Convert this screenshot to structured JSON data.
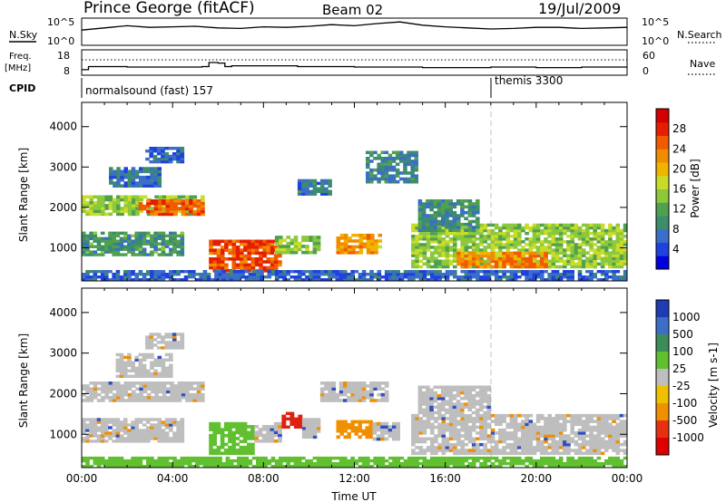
{
  "header": {
    "station": "Prince George (fitACF)",
    "beam": "Beam 02",
    "date": "19/Jul/2009"
  },
  "chart_data": [
    {
      "type": "line",
      "panel": "noise",
      "left_label": "N.Sky",
      "right_label": "N.Search",
      "left_ticks": [
        "10^5",
        "10^0"
      ],
      "right_ticks": [
        "10^5",
        "10^0"
      ],
      "x": [
        0,
        1,
        2,
        3,
        4,
        5,
        6,
        7,
        8,
        9,
        10,
        11,
        12,
        13,
        14,
        15,
        16,
        17,
        18,
        19,
        20,
        21,
        22,
        23,
        24
      ],
      "series": [
        {
          "values": [
            2.8,
            3.2,
            3.6,
            3.3,
            3.4,
            3.5,
            3.2,
            3.1,
            3.4,
            3.3,
            3.5,
            3.8,
            3.6,
            4.0,
            4.3,
            3.7,
            3.4,
            3.2,
            3.0,
            3.1,
            3.3,
            3.3,
            3.1,
            3.2,
            3.3
          ]
        }
      ]
    },
    {
      "type": "line",
      "panel": "frequency",
      "left_label": "Freq.",
      "left_unit": "[MHz]",
      "right_label": "Nave",
      "left_ticks": [
        "18",
        "8"
      ],
      "right_ticks": [
        "60",
        "0"
      ],
      "x": [
        0,
        0.3,
        2,
        5.3,
        5.6,
        6.0,
        6.3,
        6.6,
        8.5,
        9.5,
        12,
        15,
        17,
        18,
        20,
        22,
        24
      ],
      "series": [
        {
          "values": [
            10.2,
            11.4,
            11.2,
            11.4,
            13.0,
            12.8,
            11.4,
            11.7,
            11.7,
            11.4,
            11.2,
            11.0,
            11.0,
            11.2,
            11.0,
            11.2,
            11.0
          ]
        }
      ]
    },
    {
      "type": "heatmap",
      "panel": "power",
      "ylabel": "Slant Range [km]",
      "ylim": [
        180,
        4600
      ],
      "y_ticks": [
        1000,
        2000,
        3000,
        4000
      ],
      "colorbar": {
        "label": "Power [dB]",
        "ticks": [
          4,
          8,
          12,
          16,
          20,
          24,
          28
        ],
        "range": [
          0,
          32
        ]
      },
      "regions": [
        {
          "t0": 0.0,
          "t1": 5.4,
          "r0": 1800,
          "r1": 2300,
          "value": 15
        },
        {
          "t0": 2.5,
          "t1": 5.4,
          "r0": 1800,
          "r1": 2200,
          "value": 26
        },
        {
          "t0": 0.0,
          "t1": 4.5,
          "r0": 800,
          "r1": 1400,
          "value": 10
        },
        {
          "t0": 1.2,
          "t1": 3.5,
          "r0": 2500,
          "r1": 3000,
          "value": 6
        },
        {
          "t0": 2.8,
          "t1": 4.5,
          "r0": 3100,
          "r1": 3500,
          "value": 5
        },
        {
          "t0": 5.6,
          "t1": 8.8,
          "r0": 400,
          "r1": 1200,
          "value": 27
        },
        {
          "t0": 8.5,
          "t1": 10.5,
          "r0": 850,
          "r1": 1300,
          "value": 14
        },
        {
          "t0": 11.2,
          "t1": 13.2,
          "r0": 850,
          "r1": 1350,
          "value": 22
        },
        {
          "t0": 12.5,
          "t1": 14.8,
          "r0": 2600,
          "r1": 3400,
          "value": 8
        },
        {
          "t0": 9.5,
          "t1": 11.0,
          "r0": 2300,
          "r1": 2700,
          "value": 7
        },
        {
          "t0": 14.5,
          "t1": 24.0,
          "r0": 500,
          "r1": 1600,
          "value": 15
        },
        {
          "t0": 16.5,
          "t1": 20.5,
          "r0": 500,
          "r1": 900,
          "value": 24
        },
        {
          "t0": 14.8,
          "t1": 17.5,
          "r0": 1400,
          "r1": 2200,
          "value": 9
        },
        {
          "t0": 0.0,
          "t1": 24.0,
          "r0": 180,
          "r1": 450,
          "value": 5
        }
      ]
    },
    {
      "type": "heatmap",
      "panel": "velocity",
      "xlabel": "Time UT",
      "ylabel": "Slant Range [km]",
      "ylim": [
        180,
        4600
      ],
      "y_ticks": [
        1000,
        2000,
        3000,
        4000
      ],
      "x_ticks": [
        "00:00",
        "04:00",
        "08:00",
        "12:00",
        "16:00",
        "20:00",
        "00:00"
      ],
      "colorbar": {
        "label": "Velocity [m s-1]",
        "ticks": [
          "1000",
          "500",
          "100",
          "25",
          "-25",
          "-100",
          "-500",
          "-1000"
        ]
      },
      "regions": [
        {
          "t0": 0.0,
          "t1": 5.4,
          "r0": 1800,
          "r1": 2300,
          "value": "grey"
        },
        {
          "t0": 0.0,
          "t1": 4.5,
          "r0": 800,
          "r1": 1400,
          "value": "grey"
        },
        {
          "t0": 1.5,
          "t1": 4.0,
          "r0": 2400,
          "r1": 3000,
          "value": "grey"
        },
        {
          "t0": 2.8,
          "t1": 4.5,
          "r0": 3100,
          "r1": 3500,
          "value": "grey"
        },
        {
          "t0": 5.6,
          "t1": 7.6,
          "r0": 500,
          "r1": 1300,
          "value": "green"
        },
        {
          "t0": 7.6,
          "t1": 8.8,
          "r0": 800,
          "r1": 1300,
          "value": "grey"
        },
        {
          "t0": 8.8,
          "t1": 9.7,
          "r0": 1150,
          "r1": 1550,
          "value": "red"
        },
        {
          "t0": 9.7,
          "t1": 10.5,
          "r0": 900,
          "r1": 1400,
          "value": "grey"
        },
        {
          "t0": 11.2,
          "t1": 12.8,
          "r0": 900,
          "r1": 1350,
          "value": "orange"
        },
        {
          "t0": 12.8,
          "t1": 14.0,
          "r0": 850,
          "r1": 1300,
          "value": "grey"
        },
        {
          "t0": 10.5,
          "t1": 13.5,
          "r0": 1800,
          "r1": 2300,
          "value": "grey"
        },
        {
          "t0": 14.5,
          "t1": 24.0,
          "r0": 500,
          "r1": 1500,
          "value": "grey"
        },
        {
          "t0": 14.8,
          "t1": 18.0,
          "r0": 1500,
          "r1": 2200,
          "value": "grey"
        },
        {
          "t0": 0.0,
          "t1": 24.0,
          "r0": 180,
          "r1": 450,
          "value": "green"
        }
      ]
    }
  ],
  "cpid": {
    "label": "CPID",
    "segments": [
      {
        "t0": 0,
        "t1": 18.0,
        "name": "normalsound (fast) 157"
      },
      {
        "t0": 18.0,
        "t1": 24,
        "name": "themis 3300"
      }
    ]
  },
  "colors": {
    "power": [
      "#0000dc",
      "#2040e0",
      "#3a6ec8",
      "#3c8c6e",
      "#50a050",
      "#8cc83c",
      "#c8dc28",
      "#f0b400",
      "#f08c00",
      "#f05a00",
      "#e61e00",
      "#d20000"
    ],
    "velocity": {
      "blue": "#3050c0",
      "green": "#60c030",
      "grey": "#bebebe",
      "orange": "#f09000",
      "red": "#e02010"
    }
  }
}
